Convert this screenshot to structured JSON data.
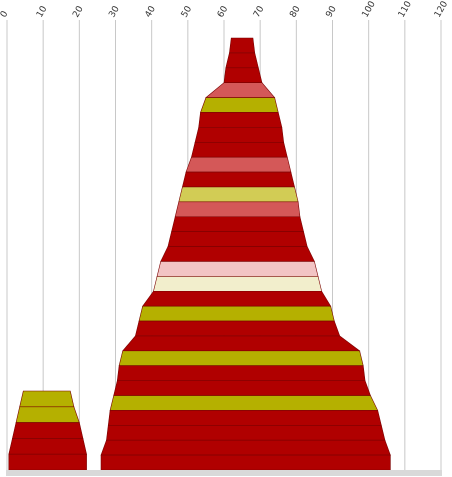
{
  "chart_data": {
    "type": "area",
    "title": "",
    "xlabel": "",
    "ylabel": "",
    "x_ticks": [
      "0",
      "10",
      "20",
      "30",
      "40",
      "50",
      "60",
      "70",
      "80",
      "90",
      "100",
      "110",
      "120"
    ],
    "xlim": [
      0,
      120
    ],
    "grid": "vertical",
    "legend": "none",
    "colors": {
      "dark_red": "#b00000",
      "salmon": "#d45858",
      "olive": "#b5b000",
      "light_olive": "#d2cc55",
      "pink": "#f2c4c4",
      "cream": "#f2eecc"
    },
    "shapes": [
      {
        "name": "small-stack",
        "bands": [
          {
            "left": 4.5,
            "right": 17.5,
            "color": "olive"
          },
          {
            "left": 3.5,
            "right": 18.5,
            "color": "olive"
          },
          {
            "left": 2.5,
            "right": 20.0,
            "color": "dark_red"
          },
          {
            "left": 1.5,
            "right": 21.0,
            "color": "dark_red"
          },
          {
            "left": 0.5,
            "right": 22.0,
            "color": "dark_red"
          }
        ]
      },
      {
        "name": "large-stack",
        "bands": [
          {
            "left": 62.0,
            "right": 68.0,
            "color": "dark_red"
          },
          {
            "left": 61.5,
            "right": 68.5,
            "color": "dark_red"
          },
          {
            "left": 60.5,
            "right": 69.5,
            "color": "dark_red"
          },
          {
            "left": 60.0,
            "right": 70.5,
            "color": "salmon"
          },
          {
            "left": 55.0,
            "right": 74.0,
            "color": "olive"
          },
          {
            "left": 53.5,
            "right": 75.0,
            "color": "dark_red"
          },
          {
            "left": 53.0,
            "right": 76.0,
            "color": "dark_red"
          },
          {
            "left": 52.0,
            "right": 76.5,
            "color": "dark_red"
          },
          {
            "left": 51.0,
            "right": 77.5,
            "color": "salmon"
          },
          {
            "left": 49.5,
            "right": 78.5,
            "color": "dark_red"
          },
          {
            "left": 48.5,
            "right": 79.5,
            "color": "light_olive"
          },
          {
            "left": 47.5,
            "right": 80.5,
            "color": "salmon"
          },
          {
            "left": 46.5,
            "right": 81.0,
            "color": "dark_red"
          },
          {
            "left": 45.5,
            "right": 82.0,
            "color": "dark_red"
          },
          {
            "left": 44.5,
            "right": 83.0,
            "color": "dark_red"
          },
          {
            "left": 42.5,
            "right": 85.0,
            "color": "pink"
          },
          {
            "left": 41.5,
            "right": 86.0,
            "color": "cream"
          },
          {
            "left": 40.5,
            "right": 87.0,
            "color": "dark_red"
          },
          {
            "left": 37.5,
            "right": 89.5,
            "color": "olive"
          },
          {
            "left": 36.5,
            "right": 90.5,
            "color": "dark_red"
          },
          {
            "left": 35.5,
            "right": 92.0,
            "color": "dark_red"
          },
          {
            "left": 32.0,
            "right": 97.5,
            "color": "olive"
          },
          {
            "left": 31.0,
            "right": 98.5,
            "color": "dark_red"
          },
          {
            "left": 30.5,
            "right": 99.0,
            "color": "dark_red"
          },
          {
            "left": 29.5,
            "right": 100.5,
            "color": "olive"
          },
          {
            "left": 28.5,
            "right": 102.5,
            "color": "dark_red"
          },
          {
            "left": 28.0,
            "right": 103.5,
            "color": "dark_red"
          },
          {
            "left": 27.5,
            "right": 104.5,
            "color": "dark_red"
          },
          {
            "left": 26.0,
            "right": 106.0,
            "color": "dark_red"
          }
        ]
      }
    ]
  }
}
